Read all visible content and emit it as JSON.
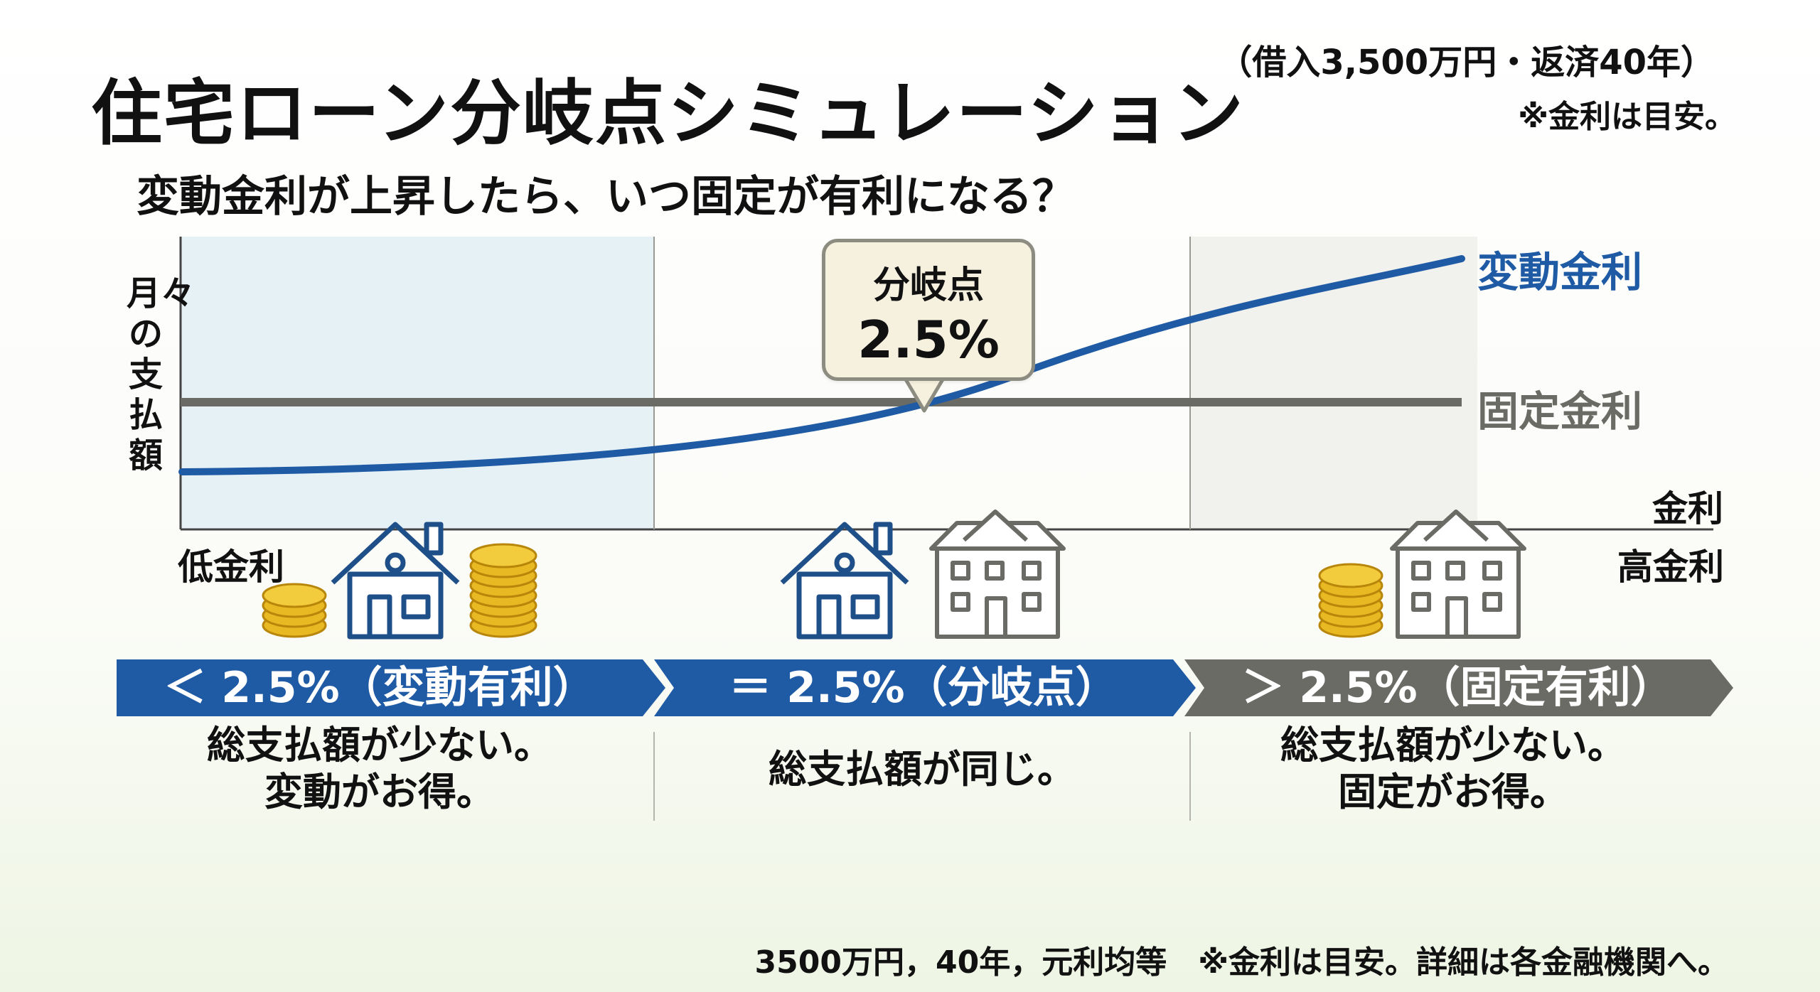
{
  "title": "住宅ローン分岐点シミュレーション",
  "subtitle": "変動金利が上昇したら、いつ固定が有利になる？",
  "conditions": "（借入3,500万円・返済40年）",
  "note_top": "※金利は目安。",
  "chart": {
    "y_axis_label": "月々の支払額",
    "x_axis_label": "金利",
    "low_label": "低金利",
    "high_label": "高金利",
    "variable_label": "変動金利",
    "fixed_label": "固定金利",
    "callout_line1": "分岐点",
    "callout_line2": "2.5%",
    "colors": {
      "variable": "#1f5aa5",
      "fixed": "#6b6b65"
    }
  },
  "zones": [
    {
      "label": "＜ 2.5%（変動有利）",
      "desc_line1": "総支払額が少ない。",
      "desc_line2": "変動がお得。",
      "color": "#1f5aa5"
    },
    {
      "label": "＝ 2.5%（分岐点）",
      "desc_line1": "総支払額が同じ。",
      "desc_line2": "",
      "color": "#1f5aa5"
    },
    {
      "label": "＞ 2.5%（固定有利）",
      "desc_line1": "総支払額が少ない。",
      "desc_line2": "固定がお得。",
      "color": "#6b6b65"
    }
  ],
  "footer": "3500万円，40年，元利均等　※金利は目安。詳細は各金融機関へ。"
}
